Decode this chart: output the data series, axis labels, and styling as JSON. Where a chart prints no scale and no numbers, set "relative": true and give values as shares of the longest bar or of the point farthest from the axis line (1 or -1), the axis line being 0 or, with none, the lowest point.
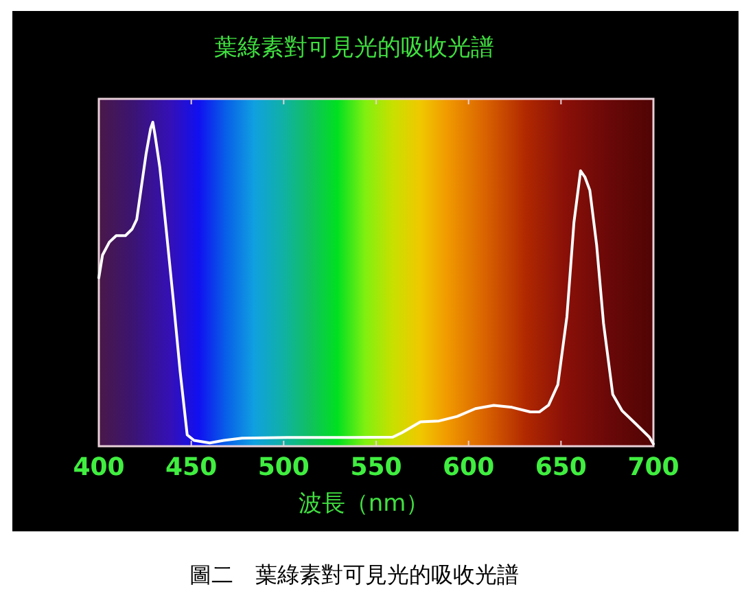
{
  "chart_data": {
    "type": "line",
    "title": "葉綠素對可見光的吸收光譜",
    "xlabel": "波長（nm）",
    "annotations": [
      "圖二　葉綠素對可見光的吸收光譜"
    ],
    "relative": true,
    "xlim": [
      400,
      700
    ],
    "xticks": [
      400,
      450,
      500,
      550,
      600,
      650,
      700
    ],
    "grid": false,
    "marker": "none",
    "line_style": "solid",
    "series": [
      {
        "color": "#ffffff",
        "x": [
          400,
          402,
          405.7,
          409.4,
          414.4,
          418,
          420.5,
          423,
          425.5,
          428,
          429.2,
          430.4,
          433,
          436.6,
          440.3,
          444,
          447.8,
          451.5,
          460,
          467.6,
          477.5,
          502,
          527,
          559,
          564,
          574,
          584,
          593.8,
          603.7,
          613.6,
          623.5,
          633.4,
          638.4,
          643.3,
          648.3,
          653.2,
          657,
          660.6,
          663,
          665.6,
          669.3,
          673,
          678,
          683,
          690.3,
          697.8,
          700
        ],
        "values": [
          0.52,
          0.59,
          0.63,
          0.65,
          0.65,
          0.67,
          0.7,
          0.8,
          0.9,
          0.98,
          1,
          0.96,
          0.86,
          0.66,
          0.45,
          0.23,
          0.035,
          0.018,
          0.01,
          0.018,
          0.025,
          0.027,
          0.027,
          0.028,
          0.042,
          0.075,
          0.078,
          0.092,
          0.116,
          0.126,
          0.12,
          0.106,
          0.106,
          0.127,
          0.19,
          0.4,
          0.69,
          0.85,
          0.83,
          0.79,
          0.62,
          0.38,
          0.16,
          0.11,
          0.07,
          0.028,
          0.007
        ]
      }
    ]
  }
}
